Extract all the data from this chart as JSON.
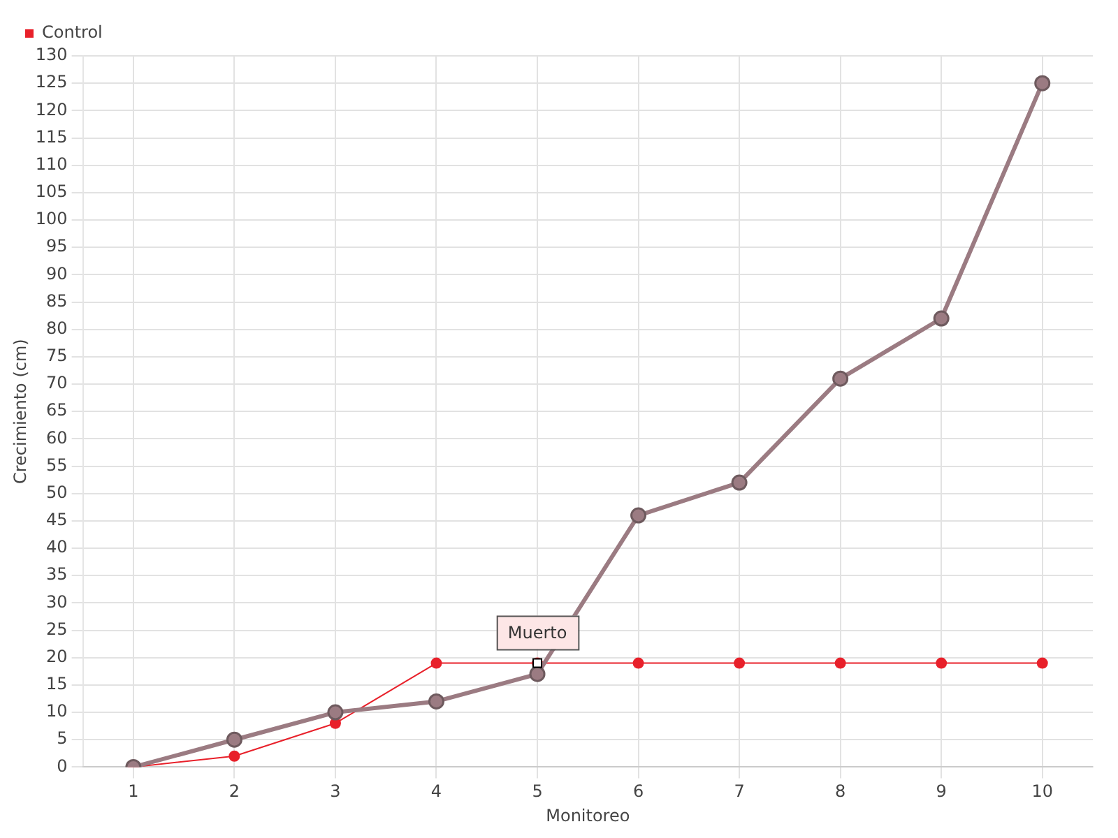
{
  "chart_data": {
    "type": "line",
    "xlabel": "Monitoreo",
    "ylabel": "Crecimiento (cm)",
    "categories": [
      "1",
      "2",
      "3",
      "4",
      "5",
      "6",
      "7",
      "8",
      "9",
      "10"
    ],
    "series": [
      {
        "color": "#9b7b82",
        "values": [
          0,
          5,
          10,
          12,
          17,
          46,
          52,
          71,
          82,
          125
        ]
      },
      {
        "name": "Control",
        "color": "#e8202a",
        "values": [
          0,
          2,
          8,
          19,
          19,
          19,
          19,
          19,
          19,
          19
        ]
      }
    ],
    "ylim": [
      0,
      130
    ],
    "yticks": [
      0,
      5,
      10,
      15,
      20,
      25,
      30,
      35,
      40,
      45,
      50,
      55,
      60,
      65,
      70,
      75,
      80,
      85,
      90,
      95,
      100,
      105,
      110,
      115,
      120,
      125,
      130
    ],
    "grid": true,
    "legend": "top left",
    "marker": "circle",
    "line_style": "solid",
    "annotations": [
      {
        "text": "Muerto",
        "x": "5",
        "y": 19
      }
    ]
  }
}
